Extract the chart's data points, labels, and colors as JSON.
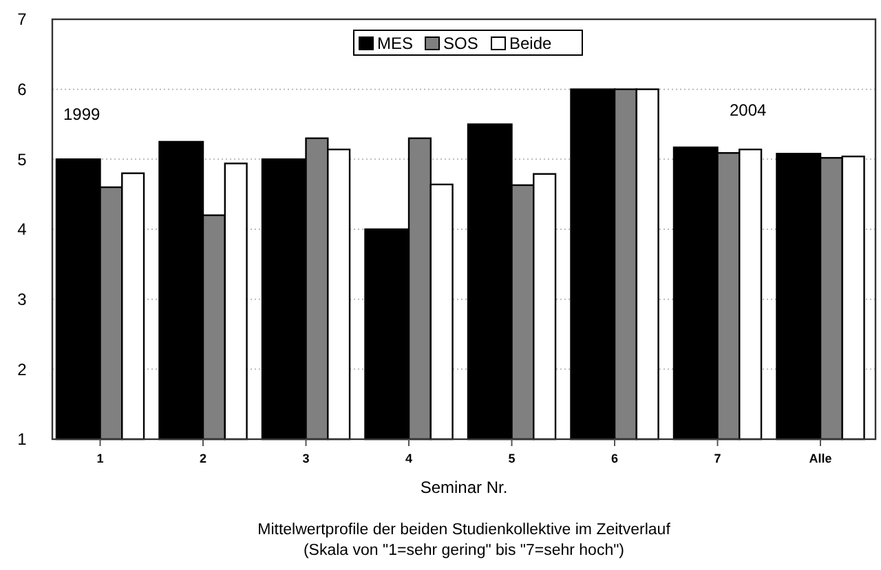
{
  "chart_data": {
    "type": "bar",
    "title": "Mittelwertprofile der beiden Studienkollektive im Zeitverlauf",
    "subtitle": "(Skala von \"1=sehr gering\" bis \"7=sehr hoch\")",
    "xlabel": "Seminar Nr.",
    "categories": [
      "1",
      "2",
      "3",
      "4",
      "5",
      "6",
      "7",
      "Alle"
    ],
    "series": [
      {
        "name": "MES",
        "color": "#000000",
        "values": [
          5.0,
          5.25,
          5.0,
          4.0,
          5.5,
          6.0,
          5.17,
          5.08
        ]
      },
      {
        "name": "SOS",
        "color": "#808080",
        "values": [
          4.6,
          4.2,
          5.3,
          5.3,
          4.63,
          6.0,
          5.09,
          5.02
        ]
      },
      {
        "name": "Beide",
        "color": "#ffffff",
        "values": [
          4.8,
          4.94,
          5.14,
          4.64,
          4.79,
          6.0,
          5.14,
          5.04
        ]
      }
    ],
    "ylim": [
      1,
      7
    ],
    "yticks": [
      1,
      2,
      3,
      4,
      5,
      6,
      7
    ],
    "grid": "y",
    "legend": "top",
    "annotations": [
      "1999",
      "2004"
    ]
  }
}
